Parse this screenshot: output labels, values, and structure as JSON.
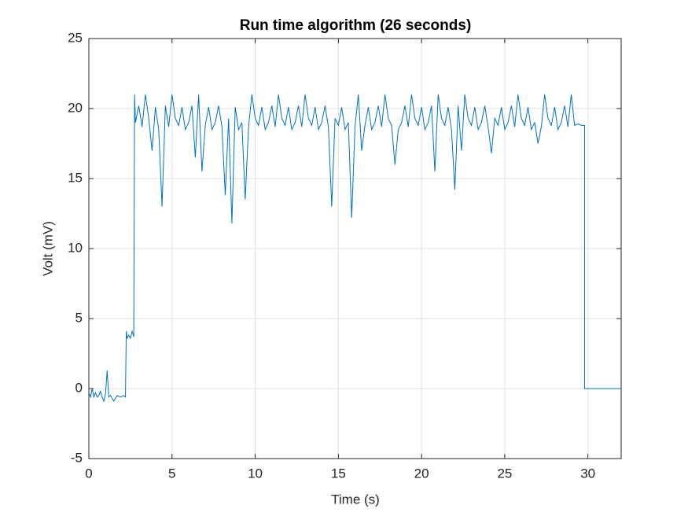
{
  "chart_data": {
    "type": "line",
    "title": "Run time algorithm (26 seconds)",
    "xlabel": "Time (s)",
    "ylabel": "Volt (mV)",
    "x": [
      0,
      0.1,
      0.2,
      0.3,
      0.4,
      0.5,
      0.6,
      0.7,
      0.8,
      0.9,
      1.0,
      1.1,
      1.2,
      1.3,
      1.5,
      1.7,
      1.9,
      2.1,
      2.2,
      2.25,
      2.3,
      2.4,
      2.5,
      2.6,
      2.7,
      2.75,
      2.8,
      3,
      3.2,
      3.4,
      3.6,
      3.8,
      4,
      4.2,
      4.4,
      4.6,
      4.8,
      5,
      5.2,
      5.4,
      5.6,
      5.8,
      6,
      6.2,
      6.4,
      6.6,
      6.8,
      7,
      7.2,
      7.4,
      7.6,
      7.8,
      8,
      8.2,
      8.4,
      8.6,
      8.8,
      9,
      9.2,
      9.4,
      9.6,
      9.8,
      10,
      10.2,
      10.4,
      10.6,
      10.8,
      11,
      11.2,
      11.4,
      11.6,
      11.8,
      12,
      12.2,
      12.4,
      12.6,
      12.8,
      13,
      13.2,
      13.4,
      13.6,
      13.8,
      14,
      14.2,
      14.4,
      14.6,
      14.8,
      15,
      15.2,
      15.4,
      15.6,
      15.8,
      16,
      16.2,
      16.4,
      16.6,
      16.8,
      17,
      17.2,
      17.4,
      17.6,
      17.8,
      18,
      18.2,
      18.4,
      18.6,
      18.8,
      19,
      19.2,
      19.4,
      19.6,
      19.8,
      20,
      20.2,
      20.4,
      20.6,
      20.8,
      21,
      21.2,
      21.4,
      21.6,
      21.8,
      22,
      22.2,
      22.4,
      22.6,
      22.8,
      23,
      23.2,
      23.4,
      23.6,
      23.8,
      24,
      24.2,
      24.4,
      24.6,
      24.8,
      25,
      25.2,
      25.4,
      25.6,
      25.8,
      26,
      26.2,
      26.4,
      26.6,
      26.8,
      27,
      27.2,
      27.4,
      27.6,
      27.8,
      28,
      28.2,
      28.4,
      28.6,
      28.8,
      29,
      29.2,
      29.4,
      29.6,
      29.8,
      29.8,
      32
    ],
    "series": [
      {
        "color": "#0072bd",
        "values": [
          -0.3,
          -0.6,
          0,
          -0.6,
          -0.3,
          -0.6,
          -0.5,
          -0.2,
          -0.6,
          -0.9,
          -0.4,
          1.3,
          -0.6,
          -0.5,
          -0.9,
          -0.5,
          -0.6,
          -0.5,
          -0.6,
          4.1,
          3.6,
          3.8,
          3.6,
          4.1,
          3.7,
          21,
          19,
          20.2,
          18.7,
          21,
          19.3,
          17,
          20.1,
          18.5,
          13,
          20.2,
          18.7,
          21,
          19.3,
          18.8,
          20.1,
          18.5,
          19,
          20.2,
          16.5,
          21,
          15.5,
          18.8,
          20.1,
          18.5,
          19,
          20.2,
          18.7,
          13.8,
          19.3,
          11.8,
          20.1,
          18.5,
          19,
          13.5,
          18.7,
          21,
          19.3,
          18.8,
          20.1,
          18.5,
          19,
          20.2,
          18.7,
          21,
          19.3,
          18.8,
          20.1,
          18.5,
          19,
          20.2,
          18.7,
          21,
          19.3,
          18.8,
          20.1,
          18.5,
          19,
          20.2,
          18.7,
          13,
          19.3,
          18.8,
          20.1,
          18.5,
          19,
          12.2,
          18.7,
          21,
          17,
          18.8,
          20.1,
          18.5,
          19,
          20.2,
          18.7,
          21,
          19.3,
          18.8,
          16,
          18.5,
          19,
          20.2,
          18.7,
          21,
          19.3,
          18.8,
          20.1,
          18.5,
          19,
          20.2,
          15.5,
          21,
          19.3,
          18.8,
          20.1,
          18.5,
          14.2,
          20.2,
          17,
          21,
          19.3,
          18.8,
          20.1,
          18.5,
          19,
          20.2,
          18.7,
          16.8,
          19.3,
          18.8,
          20.1,
          18.5,
          19,
          20.2,
          18.7,
          21,
          19.3,
          18.8,
          20.1,
          18.5,
          19,
          17.5,
          18.7,
          21,
          19.3,
          18.8,
          20.1,
          18.5,
          19,
          20.2,
          18.7,
          21,
          18.8,
          18.9,
          18.8,
          18.8,
          0,
          0
        ]
      }
    ],
    "xlim": [
      0,
      32
    ],
    "xticks": [
      0,
      5,
      10,
      15,
      20,
      25,
      30
    ],
    "ylim": [
      -5,
      25
    ],
    "yticks": [
      -5,
      0,
      5,
      10,
      15,
      20,
      25
    ],
    "grid": true
  }
}
